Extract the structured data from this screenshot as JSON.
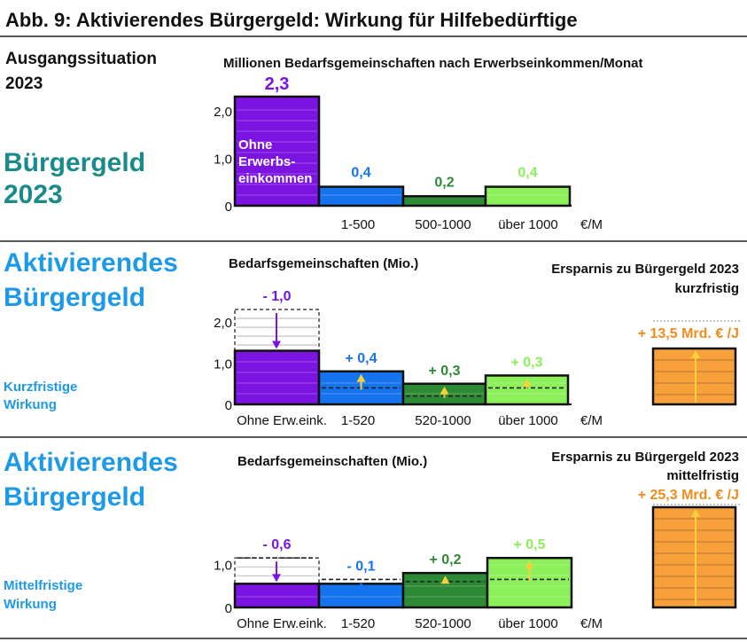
{
  "header": {
    "title": "Abb. 9:  Aktivierendes Bürgergeld:    Wirkung für Hilfebedürftige"
  },
  "colors": {
    "purple": "#7b14e0",
    "blue": "#1673ee",
    "darkgreen": "#2d8a34",
    "lightgreen": "#8cf05a",
    "orange": "#f8a03c",
    "teal": "#1a8a8a",
    "lightblue": "#1c9ae8",
    "savings_text": "#f08c1c",
    "up_arrow": "#f5d23a",
    "down_arrow_purple": "#7b14e0",
    "down_arrow_blue": "#1673ee"
  },
  "chart_data": [
    {
      "id": "baseline",
      "type": "bar",
      "side_heading": "Ausgangssituation",
      "side_heading_year": "2023",
      "side_title_line1": "Bürgergeld",
      "side_title_line2": "2023",
      "title": "Millionen Bedarfsgemeinschaften nach Erwerbseinkommen/Monat",
      "unit": "€/M",
      "ylim": [
        0,
        2.3
      ],
      "yticks": [
        "0",
        "1,0",
        "2,0"
      ],
      "categories": [
        "",
        "1-500",
        "500-1000",
        "über 1000"
      ],
      "values": [
        2.3,
        0.4,
        0.2,
        0.4
      ],
      "value_labels": [
        "2,3",
        "0,4",
        "0,2",
        "0,4"
      ],
      "inner_label": [
        "Ohne",
        "Erwerbs-",
        "einkommen"
      ]
    },
    {
      "id": "kurzfristig",
      "type": "bar",
      "side_title_line1": "Aktivierendes",
      "side_title_line2": "Bürgergeld",
      "side_sub_line1": "Kurzfristige",
      "side_sub_line2": "Wirkung",
      "title": "Bedarfsgemeinschaften (Mio.)",
      "unit": "€/M",
      "ylim": [
        0,
        2.3
      ],
      "yticks": [
        "0",
        "1,0",
        "2,0"
      ],
      "categories": [
        "Ohne Erw.eink.",
        "1-520",
        "520-1000",
        "über 1000"
      ],
      "baseline_values": [
        2.3,
        0.4,
        0.2,
        0.4
      ],
      "values": [
        1.3,
        0.8,
        0.5,
        0.7
      ],
      "change_labels": [
        "- 1,0",
        "+ 0,4",
        "+ 0,3",
        "+ 0,3"
      ],
      "savings_title": "Ersparnis zu Bürgergeld 2023",
      "savings_sub": "kurzfristig",
      "savings_label": "+ 13,5 Mrd. € /J",
      "savings_value": 13.5
    },
    {
      "id": "mittelfristig",
      "type": "bar",
      "side_title_line1": "Aktivierendes",
      "side_title_line2": "Bürgergeld",
      "side_sub_line1": "Mittelfristige",
      "side_sub_line2": "Wirkung",
      "title": "Bedarfsgemeinschaften (Mio.)",
      "unit": "€/M",
      "ylim": [
        0,
        1.1
      ],
      "yticks": [
        "0",
        "1,0"
      ],
      "categories": [
        "Ohne Erw.eink.",
        "1-520",
        "520-1000",
        "über 1000"
      ],
      "baseline_values": [
        1.15,
        0.65,
        0.6,
        0.65
      ],
      "values": [
        0.55,
        0.55,
        0.8,
        1.15
      ],
      "change_labels": [
        "- 0,6",
        "- 0,1",
        "+ 0,2",
        "+ 0,5"
      ],
      "savings_title": "Ersparnis zu Bürgergeld 2023",
      "savings_sub": "mittelfristig",
      "savings_label": "+ 25,3 Mrd. € /J",
      "savings_value": 25.3
    }
  ]
}
